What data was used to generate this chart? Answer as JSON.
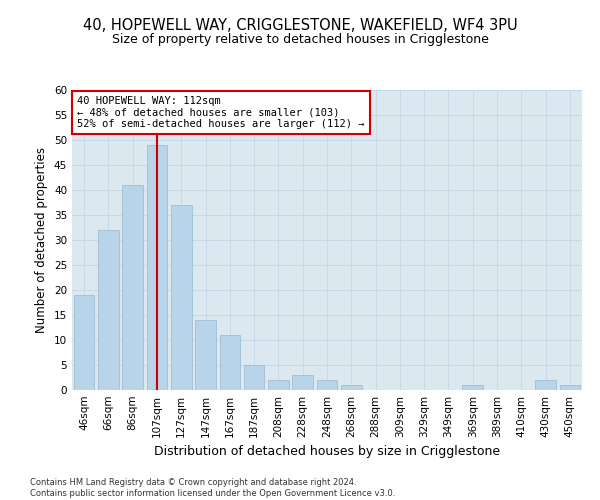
{
  "title_line1": "40, HOPEWELL WAY, CRIGGLESTONE, WAKEFIELD, WF4 3PU",
  "title_line2": "Size of property relative to detached houses in Crigglestone",
  "xlabel": "Distribution of detached houses by size in Crigglestone",
  "ylabel": "Number of detached properties",
  "categories": [
    "46sqm",
    "66sqm",
    "86sqm",
    "107sqm",
    "127sqm",
    "147sqm",
    "167sqm",
    "187sqm",
    "208sqm",
    "228sqm",
    "248sqm",
    "268sqm",
    "288sqm",
    "309sqm",
    "329sqm",
    "349sqm",
    "369sqm",
    "389sqm",
    "410sqm",
    "430sqm",
    "450sqm"
  ],
  "values": [
    19,
    32,
    41,
    49,
    37,
    14,
    11,
    5,
    2,
    3,
    2,
    1,
    0,
    0,
    0,
    0,
    1,
    0,
    0,
    2,
    1
  ],
  "bar_color": "#b8d4e8",
  "bar_edge_color": "#9ab8cc",
  "vline_x_index": 3,
  "vline_color": "#cc0000",
  "annotation_text": "40 HOPEWELL WAY: 112sqm\n← 48% of detached houses are smaller (103)\n52% of semi-detached houses are larger (112) →",
  "annotation_box_color": "#ffffff",
  "annotation_box_edge_color": "#cc0000",
  "ylim": [
    0,
    60
  ],
  "yticks": [
    0,
    5,
    10,
    15,
    20,
    25,
    30,
    35,
    40,
    45,
    50,
    55,
    60
  ],
  "grid_color": "#c8d8e8",
  "background_color": "#dce8f0",
  "footnote": "Contains HM Land Registry data © Crown copyright and database right 2024.\nContains public sector information licensed under the Open Government Licence v3.0.",
  "title_fontsize": 10.5,
  "subtitle_fontsize": 9,
  "xlabel_fontsize": 9,
  "ylabel_fontsize": 8.5,
  "tick_fontsize": 7.5,
  "annotation_fontsize": 7.5,
  "footnote_fontsize": 6
}
